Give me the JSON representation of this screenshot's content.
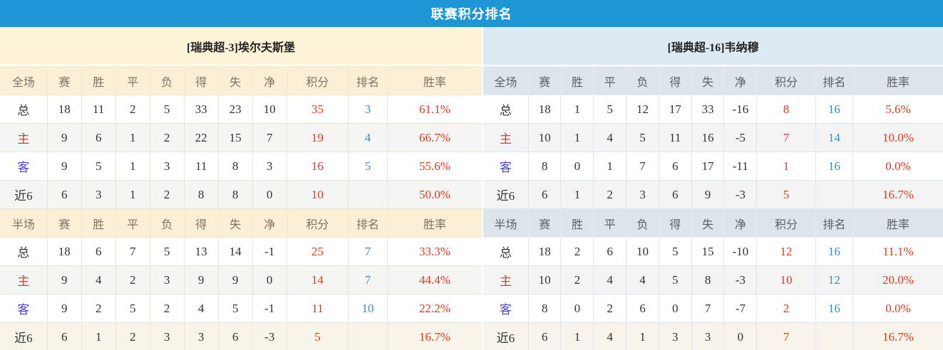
{
  "title": "联赛积分排名",
  "columns": {
    "stat_headers": [
      "赛",
      "胜",
      "平",
      "负",
      "得",
      "失",
      "净",
      "积分",
      "排名",
      "胜率"
    ]
  },
  "colors": {
    "title_bar": "#1e96d5",
    "left_theme": "#fbf0d6",
    "right_theme": "#dde4ec",
    "points_red": "#e4391d",
    "rank_blue": "#3a8bcc",
    "home_label_red": "#cd4040",
    "away_label_blue": "#4a42cf"
  },
  "panels": [
    {
      "side": "left",
      "team": "[瑞典超-3]埃尔夫斯堡",
      "sections": [
        {
          "label": "全场",
          "rows": [
            {
              "label": "总",
              "type": "total",
              "stats": [
                "18",
                "11",
                "2",
                "5",
                "33",
                "23",
                "10"
              ],
              "points": "35",
              "rank": "3",
              "rate": "61.1%"
            },
            {
              "label": "主",
              "type": "home",
              "stats": [
                "9",
                "6",
                "1",
                "2",
                "22",
                "15",
                "7"
              ],
              "points": "19",
              "rank": "4",
              "rate": "66.7%"
            },
            {
              "label": "客",
              "type": "away",
              "stats": [
                "9",
                "5",
                "1",
                "3",
                "11",
                "8",
                "3"
              ],
              "points": "16",
              "rank": "5",
              "rate": "55.6%"
            },
            {
              "label": "近6",
              "type": "recent",
              "stats": [
                "6",
                "3",
                "1",
                "2",
                "8",
                "8",
                "0"
              ],
              "points": "10",
              "rank": "",
              "rate": "50.0%"
            }
          ]
        },
        {
          "label": "半场",
          "rows": [
            {
              "label": "总",
              "type": "total",
              "stats": [
                "18",
                "6",
                "7",
                "5",
                "13",
                "14",
                "-1"
              ],
              "points": "25",
              "rank": "7",
              "rate": "33.3%"
            },
            {
              "label": "主",
              "type": "home",
              "stats": [
                "9",
                "4",
                "2",
                "3",
                "9",
                "9",
                "0"
              ],
              "points": "14",
              "rank": "7",
              "rate": "44.4%"
            },
            {
              "label": "客",
              "type": "away",
              "stats": [
                "9",
                "2",
                "5",
                "2",
                "4",
                "5",
                "-1"
              ],
              "points": "11",
              "rank": "10",
              "rate": "22.2%"
            },
            {
              "label": "近6",
              "type": "recent",
              "stats": [
                "6",
                "1",
                "2",
                "3",
                "3",
                "6",
                "-3"
              ],
              "points": "5",
              "rank": "",
              "rate": "16.7%"
            }
          ]
        }
      ]
    },
    {
      "side": "right",
      "team": "[瑞典超-16]韦纳穆",
      "sections": [
        {
          "label": "全场",
          "rows": [
            {
              "label": "总",
              "type": "total",
              "stats": [
                "18",
                "1",
                "5",
                "12",
                "17",
                "33",
                "-16"
              ],
              "points": "8",
              "rank": "16",
              "rate": "5.6%"
            },
            {
              "label": "主",
              "type": "home",
              "stats": [
                "10",
                "1",
                "4",
                "5",
                "11",
                "16",
                "-5"
              ],
              "points": "7",
              "rank": "14",
              "rate": "10.0%"
            },
            {
              "label": "客",
              "type": "away",
              "stats": [
                "8",
                "0",
                "1",
                "7",
                "6",
                "17",
                "-11"
              ],
              "points": "1",
              "rank": "16",
              "rate": "0.0%"
            },
            {
              "label": "近6",
              "type": "recent",
              "stats": [
                "6",
                "1",
                "2",
                "3",
                "6",
                "9",
                "-3"
              ],
              "points": "5",
              "rank": "",
              "rate": "16.7%"
            }
          ]
        },
        {
          "label": "半场",
          "rows": [
            {
              "label": "总",
              "type": "total",
              "stats": [
                "18",
                "2",
                "6",
                "10",
                "5",
                "15",
                "-10"
              ],
              "points": "12",
              "rank": "16",
              "rate": "11.1%"
            },
            {
              "label": "主",
              "type": "home",
              "stats": [
                "10",
                "2",
                "4",
                "4",
                "5",
                "8",
                "-3"
              ],
              "points": "10",
              "rank": "12",
              "rate": "20.0%"
            },
            {
              "label": "客",
              "type": "away",
              "stats": [
                "8",
                "0",
                "2",
                "6",
                "0",
                "7",
                "-7"
              ],
              "points": "2",
              "rank": "16",
              "rate": "0.0%"
            },
            {
              "label": "近6",
              "type": "recent",
              "stats": [
                "6",
                "1",
                "4",
                "1",
                "3",
                "3",
                "0"
              ],
              "points": "7",
              "rank": "",
              "rate": "16.7%"
            }
          ]
        }
      ]
    }
  ]
}
